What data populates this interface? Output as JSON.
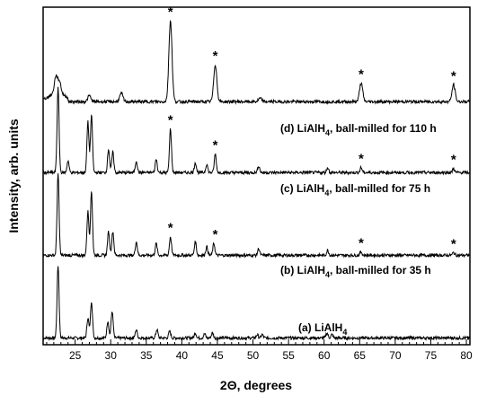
{
  "chart_data": {
    "type": "line",
    "xlabel": "2Θ, degrees",
    "ylabel": "Intensity, arb. units",
    "xlim": [
      20.5,
      80.5
    ],
    "ylim": [
      0,
      100
    ],
    "xticks": [
      25,
      30,
      35,
      40,
      45,
      50,
      55,
      60,
      65,
      70,
      75,
      80
    ],
    "grid": false,
    "peak_marker": "*",
    "series": [
      {
        "name": "(a) LiAlH4",
        "label_main": "(a) LiAlH",
        "label_sub": "4",
        "label_tail": "",
        "baseline": 2.0,
        "peaks": [
          {
            "x": 22.6,
            "h": 21.5
          },
          {
            "x": 26.8,
            "h": 6.0
          },
          {
            "x": 27.3,
            "h": 11.0
          },
          {
            "x": 29.6,
            "h": 5.0
          },
          {
            "x": 30.2,
            "h": 8.0
          },
          {
            "x": 33.6,
            "h": 2.5
          },
          {
            "x": 36.5,
            "h": 2.5
          },
          {
            "x": 38.3,
            "h": 2.0
          },
          {
            "x": 41.9,
            "h": 1.5
          },
          {
            "x": 43.2,
            "h": 1.2
          },
          {
            "x": 44.3,
            "h": 1.5
          },
          {
            "x": 50.6,
            "h": 1.0
          },
          {
            "x": 51.3,
            "h": 1.0
          },
          {
            "x": 60.4,
            "h": 1.5
          },
          {
            "x": 61.1,
            "h": 1.0
          }
        ],
        "stars": []
      },
      {
        "name": "(b) LiAlH4, ball-milled for 35 h",
        "label_main": "(b) LiAlH",
        "label_sub": "4",
        "label_tail": ", ball-milled for 35 h",
        "baseline": 26.5,
        "peaks": [
          {
            "x": 22.6,
            "h": 24.0
          },
          {
            "x": 26.8,
            "h": 13.0
          },
          {
            "x": 27.3,
            "h": 19.0
          },
          {
            "x": 29.7,
            "h": 7.0
          },
          {
            "x": 30.3,
            "h": 7.0
          },
          {
            "x": 33.6,
            "h": 4.0
          },
          {
            "x": 36.4,
            "h": 3.5
          },
          {
            "x": 38.4,
            "h": 5.5
          },
          {
            "x": 41.9,
            "h": 4.0
          },
          {
            "x": 43.5,
            "h": 2.5
          },
          {
            "x": 44.5,
            "h": 3.5
          },
          {
            "x": 50.8,
            "h": 2.0
          },
          {
            "x": 60.5,
            "h": 1.5
          },
          {
            "x": 65.2,
            "h": 1.0
          },
          {
            "x": 78.2,
            "h": 0.8
          }
        ],
        "stars": [
          38.4,
          44.7,
          65.2,
          78.2
        ]
      },
      {
        "name": "(c) LiAlH4, ball-milled for 75 h",
        "label_main": "(c) LiAlH",
        "label_sub": "4",
        "label_tail": ", ball-milled for 75 h",
        "baseline": 51.0,
        "peaks": [
          {
            "x": 22.6,
            "h": 25.0
          },
          {
            "x": 24.0,
            "h": 3.5
          },
          {
            "x": 26.8,
            "h": 15.0
          },
          {
            "x": 27.3,
            "h": 17.0
          },
          {
            "x": 29.7,
            "h": 7.0
          },
          {
            "x": 30.3,
            "h": 6.0
          },
          {
            "x": 33.6,
            "h": 3.5
          },
          {
            "x": 36.4,
            "h": 4.0
          },
          {
            "x": 38.4,
            "h": 13.0
          },
          {
            "x": 41.9,
            "h": 3.0
          },
          {
            "x": 43.5,
            "h": 2.5
          },
          {
            "x": 44.7,
            "h": 5.5
          },
          {
            "x": 50.8,
            "h": 2.0
          },
          {
            "x": 60.5,
            "h": 1.5
          },
          {
            "x": 65.2,
            "h": 1.5
          },
          {
            "x": 78.2,
            "h": 1.2
          }
        ],
        "stars": [
          38.4,
          44.7,
          65.2,
          78.2
        ]
      },
      {
        "name": "(d) LiAlH4, ball-milled for 110 h",
        "label_main": "(d) LiAlH",
        "label_sub": "4",
        "label_tail": ", ball-milled for 110 h",
        "baseline": 72.0,
        "peaks": [
          {
            "x": 22.3,
            "h": 5.0
          },
          {
            "x": 22.8,
            "h": 3.5
          },
          {
            "x": 27.0,
            "h": 1.8
          },
          {
            "x": 31.5,
            "h": 2.5
          },
          {
            "x": 38.4,
            "h": 24.0
          },
          {
            "x": 44.7,
            "h": 11.0
          },
          {
            "x": 51.0,
            "h": 1.0
          },
          {
            "x": 65.2,
            "h": 5.5
          },
          {
            "x": 78.2,
            "h": 5.0
          }
        ],
        "stars": [
          38.4,
          44.7,
          65.2,
          78.2
        ]
      }
    ]
  }
}
